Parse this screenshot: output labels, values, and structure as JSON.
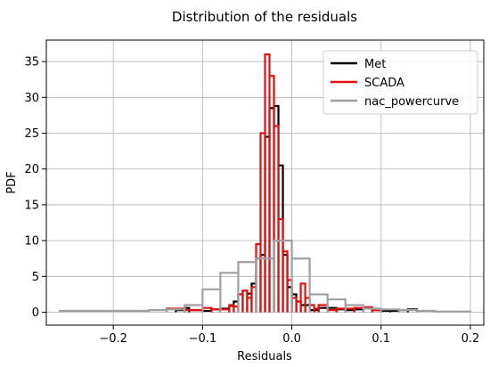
{
  "chart_data": {
    "type": "step-histogram",
    "title": "Distribution of the residuals",
    "xlabel": "Residuals",
    "ylabel": "PDF",
    "xlim": [
      -0.275,
      0.215
    ],
    "ylim": [
      -1.8,
      38
    ],
    "xticks": [
      -0.2,
      -0.1,
      0.0,
      0.1,
      0.2
    ],
    "xtick_labels": [
      "−0.2",
      "−0.1",
      "0.0",
      "0.1",
      "0.2"
    ],
    "yticks": [
      0,
      5,
      10,
      15,
      20,
      25,
      30,
      35
    ],
    "ytick_labels": [
      "0",
      "5",
      "10",
      "15",
      "20",
      "25",
      "30",
      "35"
    ],
    "grid": true,
    "legend_position": "top-right",
    "series": [
      {
        "name": "Met",
        "color": "#000000",
        "edges": [
          -0.13,
          -0.12,
          -0.115,
          -0.1,
          -0.09,
          -0.08,
          -0.07,
          -0.065,
          -0.06,
          -0.055,
          -0.05,
          -0.045,
          -0.04,
          -0.035,
          -0.03,
          -0.025,
          -0.02,
          -0.015,
          -0.01,
          -0.005,
          0.0,
          0.005,
          0.01,
          0.015,
          0.02,
          0.025,
          0.03,
          0.04,
          0.05,
          0.06,
          0.07,
          0.08,
          0.09,
          0.1,
          0.11,
          0.12,
          0.13,
          0.14
        ],
        "values": [
          0.3,
          0.6,
          0.3,
          0.2,
          0.4,
          0.5,
          0.9,
          1.5,
          2.5,
          3.0,
          2.6,
          4.0,
          7.5,
          8.0,
          24.5,
          28.5,
          28.8,
          20.5,
          8.0,
          3.5,
          2.5,
          1.5,
          1.0,
          1.0,
          0.3,
          0.3,
          0.6,
          0.6,
          0.4,
          0.3,
          0.4,
          0.6,
          0.3,
          0.2,
          0.2,
          0.3,
          0.4
        ]
      },
      {
        "name": "SCADA",
        "color": "#e01010",
        "edges": [
          -0.14,
          -0.12,
          -0.1,
          -0.09,
          -0.08,
          -0.07,
          -0.065,
          -0.06,
          -0.055,
          -0.05,
          -0.045,
          -0.04,
          -0.035,
          -0.03,
          -0.025,
          -0.02,
          -0.015,
          -0.01,
          -0.005,
          0.0,
          0.005,
          0.01,
          0.015,
          0.02,
          0.025,
          0.03,
          0.04,
          0.05,
          0.06,
          0.07,
          0.08,
          0.09,
          0.1
        ],
        "values": [
          0.5,
          0.3,
          0.6,
          0.4,
          0.4,
          1.0,
          0.8,
          2.5,
          3.0,
          2.0,
          3.5,
          9.5,
          25.0,
          36.0,
          33.0,
          26.0,
          13.0,
          8.5,
          4.5,
          2.0,
          1.5,
          4.0,
          2.0,
          1.0,
          0.5,
          1.0,
          0.3,
          0.5,
          0.5,
          0.6,
          0.7,
          0.3
        ]
      },
      {
        "name": "nac_powercurve",
        "color": "#a0a0a0",
        "edges": [
          -0.26,
          -0.16,
          -0.14,
          -0.12,
          -0.1,
          -0.08,
          -0.06,
          -0.04,
          -0.02,
          0.0,
          0.02,
          0.04,
          0.06,
          0.08,
          0.1,
          0.12,
          0.14,
          0.16,
          0.2
        ],
        "values": [
          0.2,
          0.3,
          0.4,
          1.0,
          3.2,
          5.5,
          7.0,
          7.5,
          10.0,
          7.5,
          2.5,
          1.8,
          1.0,
          0.5,
          0.4,
          0.3,
          0.2,
          0.1
        ]
      }
    ]
  }
}
